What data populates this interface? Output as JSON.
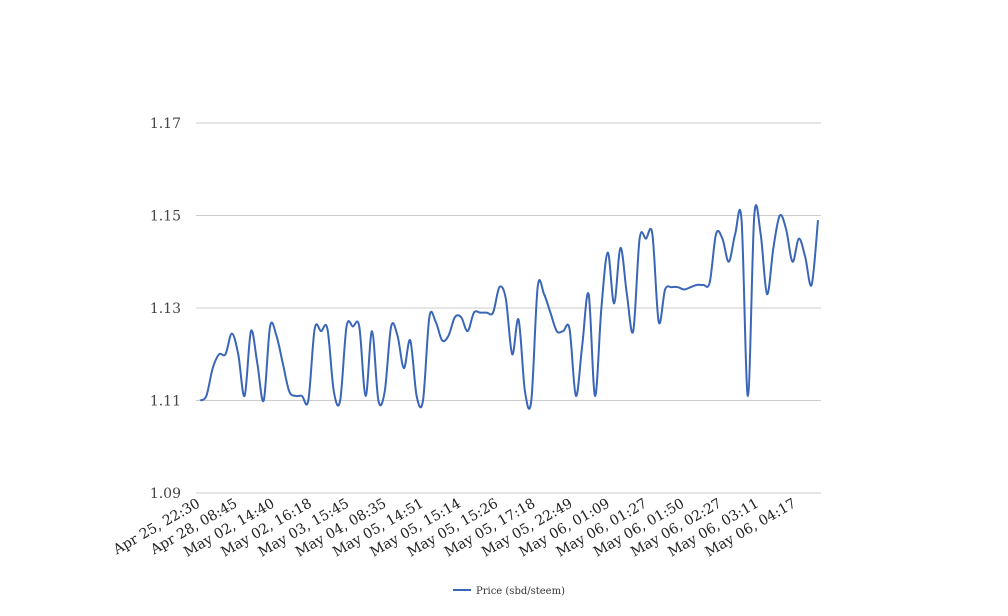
{
  "chart_data": {
    "type": "line",
    "title": "",
    "xlabel": "",
    "ylabel": "",
    "ylim": [
      1.09,
      1.17
    ],
    "y_ticks": [
      "1.09",
      "1.11",
      "1.13",
      "1.15",
      "1.17"
    ],
    "grid": "horizontal",
    "legend_position": "bottom-center",
    "x_tick_labels": [
      "Apr 25, 22:30",
      "Apr 28, 08:45",
      "May 02, 14:40",
      "May 02, 16:18",
      "May 03, 15:45",
      "May 04, 08:35",
      "May 05, 14:51",
      "May 05, 15:14",
      "May 05, 15:26",
      "May 05, 17:18",
      "May 05, 22:49",
      "May 06, 01:09",
      "May 06, 01:27",
      "May 06, 01:50",
      "May 06, 02:27",
      "May 06, 03:11",
      "May 06, 04:17"
    ],
    "series": [
      {
        "name": "Price (sbd/steem)",
        "color": "#3a66b8",
        "values": [
          1.11,
          1.111,
          1.117,
          1.12,
          1.12,
          1.1245,
          1.12,
          1.111,
          1.125,
          1.118,
          1.11,
          1.126,
          1.124,
          1.118,
          1.112,
          1.111,
          1.111,
          1.11,
          1.1255,
          1.125,
          1.1255,
          1.112,
          1.11,
          1.126,
          1.126,
          1.126,
          1.111,
          1.125,
          1.11,
          1.112,
          1.126,
          1.124,
          1.117,
          1.123,
          1.111,
          1.11,
          1.128,
          1.127,
          1.123,
          1.124,
          1.128,
          1.128,
          1.125,
          1.129,
          1.129,
          1.129,
          1.129,
          1.1345,
          1.132,
          1.12,
          1.1275,
          1.112,
          1.11,
          1.1345,
          1.133,
          1.129,
          1.125,
          1.125,
          1.1255,
          1.111,
          1.122,
          1.133,
          1.111,
          1.13,
          1.142,
          1.131,
          1.143,
          1.133,
          1.125,
          1.145,
          1.145,
          1.146,
          1.127,
          1.134,
          1.1345,
          1.1345,
          1.134,
          1.1345,
          1.135,
          1.135,
          1.1355,
          1.146,
          1.145,
          1.14,
          1.146,
          1.149,
          1.111,
          1.15,
          1.146,
          1.133,
          1.143,
          1.15,
          1.147,
          1.14,
          1.145,
          1.141,
          1.135,
          1.149
        ]
      }
    ]
  }
}
